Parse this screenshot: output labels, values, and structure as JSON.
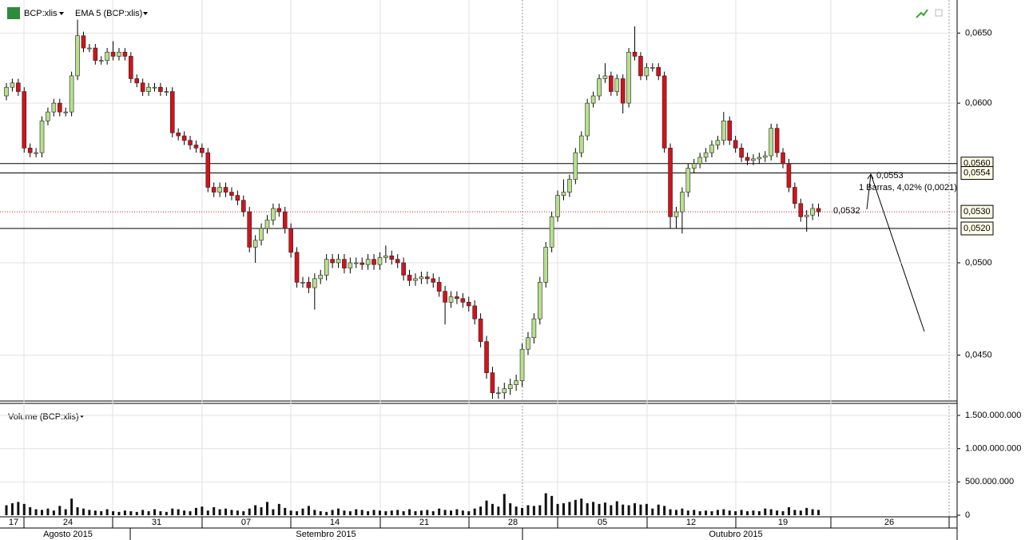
{
  "header": {
    "symbol": "BCP:xlis",
    "indicator": "EMA 5 (BCP:xlis)"
  },
  "chart_data": [
    {
      "type": "candlestick",
      "log": true,
      "grid": true,
      "ylim": [
        0.0427,
        0.0675
      ],
      "yticks": [
        {
          "value": 0.065,
          "label": "0,0650"
        },
        {
          "value": 0.06,
          "label": "0,0600"
        },
        {
          "value": 0.05,
          "label": "0,0500"
        },
        {
          "value": 0.045,
          "label": "0,0450"
        }
      ],
      "up_color": "#b7e08c",
      "down_color": "#d3121c",
      "levels": [
        {
          "value": 0.056,
          "label": "0,0560",
          "color": "#000000",
          "dash": false
        },
        {
          "value": 0.0554,
          "label": "0,0554",
          "color": "#000000",
          "dash": false
        },
        {
          "value": 0.053,
          "label": "0,0530",
          "color": "#cc2222",
          "dash": true
        },
        {
          "value": 0.052,
          "label": "0,0520",
          "color": "#000000",
          "dash": false
        }
      ],
      "annotations": [
        "0,0532",
        "0,0553",
        "1 Barras, 4,02% (0,0021)"
      ],
      "x_labels": [
        "17",
        "24",
        "31",
        "07",
        "14",
        "21",
        "28",
        "05",
        "12",
        "19",
        "26"
      ],
      "month_labels": [
        "Agosto 2015",
        "Setembro 2015",
        "Outubro 2015"
      ],
      "open": [
        0.0605,
        0.0611,
        0.0614,
        0.0608,
        0.057,
        0.0567,
        0.0567,
        0.0588,
        0.0594,
        0.06,
        0.0594,
        0.0594,
        0.0619,
        0.0648,
        0.0639,
        0.0639,
        0.063,
        0.063,
        0.0636,
        0.0633,
        0.0636,
        0.0633,
        0.0617,
        0.0614,
        0.0608,
        0.0611,
        0.0611,
        0.0608,
        0.0608,
        0.058,
        0.0578,
        0.0575,
        0.0572,
        0.057,
        0.0567,
        0.0545,
        0.0542,
        0.0545,
        0.0542,
        0.054,
        0.0537,
        0.053,
        0.0509,
        0.0513,
        0.052,
        0.0525,
        0.0532,
        0.053,
        0.052,
        0.0506,
        0.0489,
        0.0489,
        0.0486,
        0.0491,
        0.0493,
        0.0502,
        0.05,
        0.0502,
        0.0497,
        0.05,
        0.05,
        0.0499,
        0.0502,
        0.0499,
        0.0503,
        0.0504,
        0.0502,
        0.05,
        0.0493,
        0.049,
        0.0491,
        0.0492,
        0.0491,
        0.0489,
        0.0484,
        0.0478,
        0.0481,
        0.048,
        0.0478,
        0.0476,
        0.0469,
        0.0457,
        0.0441,
        0.0431,
        0.0431,
        0.0433,
        0.0435,
        0.0437,
        0.0453,
        0.0459,
        0.0469,
        0.0489,
        0.0509,
        0.0527,
        0.054,
        0.0542,
        0.055,
        0.0567,
        0.0578,
        0.06,
        0.0605,
        0.0617,
        0.0619,
        0.0608,
        0.0617,
        0.06,
        0.0636,
        0.0633,
        0.0619,
        0.0625,
        0.0625,
        0.0619,
        0.057,
        0.0527,
        0.053,
        0.0542,
        0.0557,
        0.056,
        0.0564,
        0.0567,
        0.0572,
        0.0575,
        0.0588,
        0.0575,
        0.057,
        0.0564,
        0.0562,
        0.0563,
        0.0564,
        0.0565,
        0.0583,
        0.0567,
        0.056,
        0.0545,
        0.0535,
        0.0527,
        0.0528,
        0.0532
      ],
      "high": [
        0.0614,
        0.0617,
        0.0617,
        0.0611,
        0.0573,
        0.057,
        0.0591,
        0.0597,
        0.0603,
        0.0603,
        0.0597,
        0.0622,
        0.066,
        0.0651,
        0.0642,
        0.0642,
        0.0633,
        0.0639,
        0.0644,
        0.0639,
        0.0639,
        0.0636,
        0.062,
        0.0617,
        0.0614,
        0.0614,
        0.0614,
        0.0611,
        0.0611,
        0.0583,
        0.0581,
        0.0578,
        0.0575,
        0.0573,
        0.057,
        0.0548,
        0.0548,
        0.0548,
        0.0545,
        0.0543,
        0.054,
        0.0533,
        0.0516,
        0.0523,
        0.0528,
        0.0535,
        0.0535,
        0.0533,
        0.0523,
        0.0509,
        0.0492,
        0.0492,
        0.0494,
        0.0496,
        0.0505,
        0.0505,
        0.0505,
        0.0505,
        0.0503,
        0.0503,
        0.0503,
        0.0505,
        0.0505,
        0.0506,
        0.051,
        0.0507,
        0.0505,
        0.0503,
        0.0496,
        0.0494,
        0.0495,
        0.0495,
        0.0494,
        0.0492,
        0.0487,
        0.0484,
        0.0484,
        0.0483,
        0.0481,
        0.0479,
        0.0472,
        0.046,
        0.0444,
        0.0434,
        0.0436,
        0.0438,
        0.044,
        0.0456,
        0.0462,
        0.0472,
        0.0492,
        0.0512,
        0.053,
        0.0543,
        0.055,
        0.0553,
        0.057,
        0.0581,
        0.0603,
        0.0608,
        0.062,
        0.0628,
        0.0622,
        0.062,
        0.062,
        0.0639,
        0.0655,
        0.0636,
        0.0628,
        0.0628,
        0.0628,
        0.0622,
        0.0573,
        0.0533,
        0.0545,
        0.056,
        0.0563,
        0.0567,
        0.057,
        0.0575,
        0.0578,
        0.0594,
        0.0591,
        0.0578,
        0.0573,
        0.0567,
        0.0566,
        0.0567,
        0.0568,
        0.0586,
        0.0586,
        0.057,
        0.0563,
        0.0548,
        0.0538,
        0.0531,
        0.0535,
        0.0535
      ],
      "low": [
        0.0602,
        0.0608,
        0.0605,
        0.0567,
        0.0564,
        0.0564,
        0.0564,
        0.0585,
        0.0591,
        0.0591,
        0.0591,
        0.0591,
        0.0616,
        0.0636,
        0.0636,
        0.0627,
        0.0627,
        0.0627,
        0.063,
        0.063,
        0.063,
        0.0614,
        0.0611,
        0.0605,
        0.0605,
        0.0608,
        0.0605,
        0.0605,
        0.0577,
        0.0575,
        0.0572,
        0.0569,
        0.0567,
        0.0564,
        0.0542,
        0.0539,
        0.0539,
        0.0539,
        0.0537,
        0.0534,
        0.0527,
        0.0506,
        0.05,
        0.051,
        0.0517,
        0.0522,
        0.0527,
        0.0517,
        0.0503,
        0.0486,
        0.0486,
        0.0483,
        0.0474,
        0.0488,
        0.049,
        0.0497,
        0.0497,
        0.0494,
        0.0494,
        0.0497,
        0.0496,
        0.0496,
        0.0496,
        0.0496,
        0.05,
        0.0499,
        0.0497,
        0.049,
        0.0487,
        0.0487,
        0.0488,
        0.0488,
        0.0486,
        0.0481,
        0.0466,
        0.0475,
        0.0477,
        0.0475,
        0.0473,
        0.0466,
        0.0454,
        0.0438,
        0.0428,
        0.0428,
        0.0428,
        0.043,
        0.0432,
        0.0434,
        0.045,
        0.0456,
        0.0466,
        0.0486,
        0.0506,
        0.0524,
        0.0537,
        0.0539,
        0.0547,
        0.0564,
        0.0575,
        0.0597,
        0.0602,
        0.0614,
        0.0605,
        0.0605,
        0.0593,
        0.0597,
        0.063,
        0.0616,
        0.0616,
        0.0622,
        0.0616,
        0.0567,
        0.052,
        0.052,
        0.0517,
        0.0539,
        0.0554,
        0.0557,
        0.0561,
        0.0564,
        0.0569,
        0.0572,
        0.0572,
        0.0567,
        0.0561,
        0.0559,
        0.0559,
        0.056,
        0.0561,
        0.0562,
        0.0564,
        0.0557,
        0.0542,
        0.0532,
        0.0524,
        0.0518,
        0.0525,
        0.0527
      ],
      "close": [
        0.0611,
        0.0614,
        0.0608,
        0.057,
        0.0567,
        0.0567,
        0.0588,
        0.0594,
        0.06,
        0.0594,
        0.0594,
        0.0619,
        0.0648,
        0.0639,
        0.0639,
        0.063,
        0.063,
        0.0636,
        0.0633,
        0.0636,
        0.0633,
        0.0617,
        0.0614,
        0.0608,
        0.0611,
        0.0611,
        0.0608,
        0.0608,
        0.058,
        0.0578,
        0.0575,
        0.0572,
        0.057,
        0.0567,
        0.0545,
        0.0542,
        0.0545,
        0.0542,
        0.054,
        0.0537,
        0.053,
        0.0509,
        0.0513,
        0.052,
        0.0525,
        0.0532,
        0.053,
        0.052,
        0.0506,
        0.0489,
        0.0489,
        0.0486,
        0.0491,
        0.0493,
        0.0502,
        0.05,
        0.0502,
        0.0497,
        0.05,
        0.05,
        0.0499,
        0.0502,
        0.0499,
        0.0503,
        0.0504,
        0.0502,
        0.05,
        0.0493,
        0.049,
        0.0491,
        0.0492,
        0.0491,
        0.0489,
        0.0484,
        0.0478,
        0.0481,
        0.048,
        0.0478,
        0.0476,
        0.0469,
        0.0457,
        0.0441,
        0.0431,
        0.0431,
        0.0433,
        0.0435,
        0.0437,
        0.0453,
        0.0459,
        0.0469,
        0.0489,
        0.0509,
        0.0527,
        0.054,
        0.0542,
        0.055,
        0.0567,
        0.0578,
        0.06,
        0.0605,
        0.0617,
        0.0619,
        0.0608,
        0.0617,
        0.06,
        0.0636,
        0.0633,
        0.0619,
        0.0625,
        0.0625,
        0.0619,
        0.057,
        0.0527,
        0.053,
        0.0542,
        0.0557,
        0.056,
        0.0564,
        0.0567,
        0.0572,
        0.0575,
        0.0588,
        0.0575,
        0.057,
        0.0564,
        0.0562,
        0.0563,
        0.0564,
        0.0565,
        0.0583,
        0.0567,
        0.056,
        0.0545,
        0.0535,
        0.0527,
        0.0528,
        0.0532,
        0.053
      ]
    },
    {
      "type": "bar",
      "title": "Volume (BCP:xlis)",
      "color": "#111111",
      "ylim": [
        0,
        1680000000
      ],
      "yticks": [
        {
          "value": 0,
          "label": "0"
        },
        {
          "value": 500000000,
          "label": "500.000.000"
        },
        {
          "value": 1000000000,
          "label": "1.000.000.000"
        },
        {
          "value": 1500000000,
          "label": "1.500.000.000"
        }
      ],
      "values": [
        150000000,
        180000000,
        200000000,
        170000000,
        120000000,
        90000000,
        80000000,
        100000000,
        70000000,
        140000000,
        90000000,
        250000000,
        120000000,
        100000000,
        80000000,
        70000000,
        60000000,
        90000000,
        60000000,
        50000000,
        70000000,
        60000000,
        50000000,
        80000000,
        60000000,
        90000000,
        60000000,
        50000000,
        100000000,
        90000000,
        70000000,
        60000000,
        110000000,
        130000000,
        70000000,
        120000000,
        90000000,
        100000000,
        80000000,
        70000000,
        60000000,
        100000000,
        150000000,
        120000000,
        200000000,
        90000000,
        170000000,
        110000000,
        70000000,
        60000000,
        100000000,
        140000000,
        80000000,
        60000000,
        50000000,
        80000000,
        100000000,
        70000000,
        60000000,
        90000000,
        80000000,
        60000000,
        80000000,
        70000000,
        60000000,
        70000000,
        80000000,
        60000000,
        90000000,
        60000000,
        70000000,
        80000000,
        60000000,
        100000000,
        80000000,
        70000000,
        90000000,
        70000000,
        60000000,
        100000000,
        130000000,
        220000000,
        170000000,
        130000000,
        320000000,
        180000000,
        130000000,
        110000000,
        150000000,
        140000000,
        150000000,
        330000000,
        290000000,
        170000000,
        180000000,
        200000000,
        230000000,
        250000000,
        180000000,
        200000000,
        170000000,
        190000000,
        150000000,
        210000000,
        160000000,
        150000000,
        180000000,
        160000000,
        170000000,
        100000000,
        160000000,
        140000000,
        90000000,
        80000000,
        100000000,
        70000000,
        80000000,
        60000000,
        70000000,
        60000000,
        80000000,
        90000000,
        70000000,
        60000000,
        80000000,
        60000000,
        70000000,
        60000000,
        100000000,
        90000000,
        70000000,
        60000000,
        120000000,
        80000000,
        70000000,
        110000000,
        90000000,
        80000000
      ]
    }
  ]
}
